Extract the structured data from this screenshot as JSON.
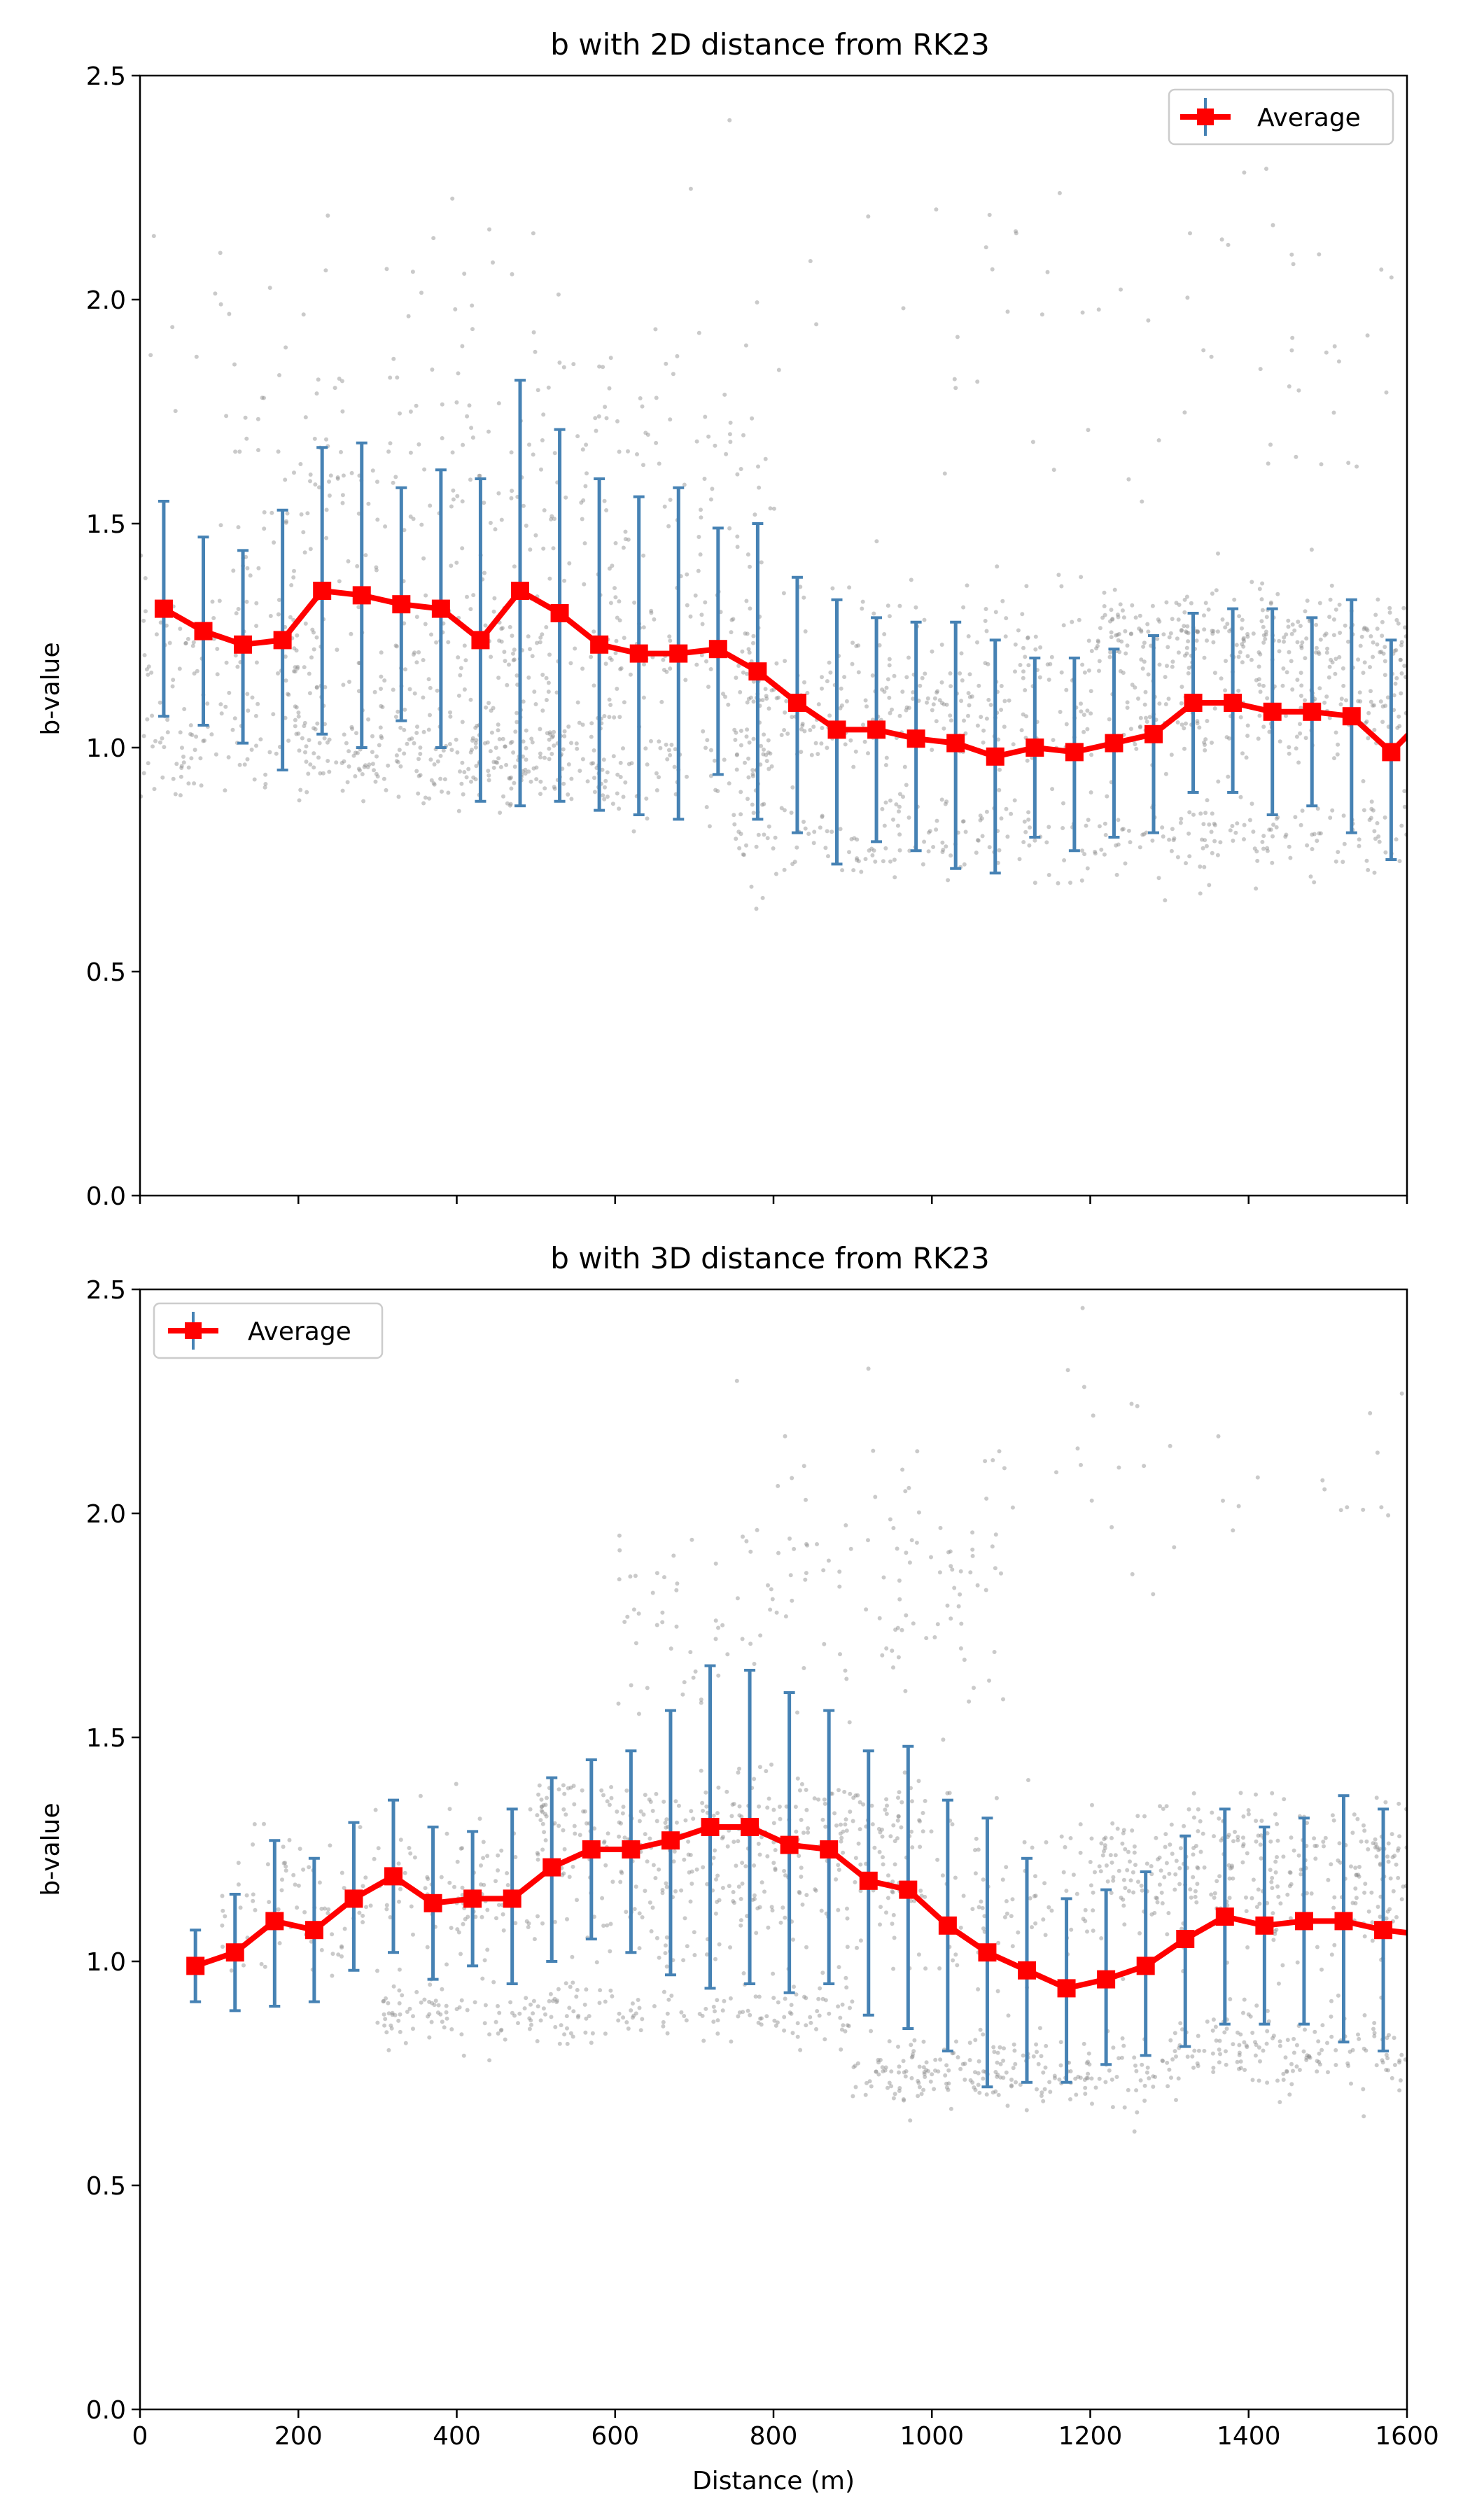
{
  "chart_data": [
    {
      "type": "line",
      "title": "b with 2D distance from RK23",
      "xlabel": "",
      "ylabel": "b-value",
      "xlim": [
        0,
        1600
      ],
      "ylim": [
        0,
        2.5
      ],
      "xticks": [
        0,
        200,
        400,
        600,
        800,
        1000,
        1200,
        1400,
        1600
      ],
      "xtick_labels_visible": false,
      "yticks": [
        0.0,
        0.5,
        1.0,
        1.5,
        2.0,
        2.5
      ],
      "ytick_labels": [
        "0.0",
        "0.5",
        "1.0",
        "1.5",
        "2.0",
        "2.5"
      ],
      "grid": false,
      "legend_position": "top-right",
      "series": [
        {
          "name": "Average",
          "color": "#ff0000",
          "errorbar_color": "#4682b4",
          "marker": "square",
          "x": [
            30,
            80,
            130,
            180,
            230,
            280,
            330,
            380,
            430,
            480,
            530,
            580,
            630,
            680,
            730,
            780,
            830,
            880,
            930,
            980,
            1030,
            1080,
            1130,
            1180,
            1230,
            1280,
            1330,
            1380,
            1430,
            1480,
            1530,
            1580,
            1630
          ],
          "y": [
            1.31,
            1.26,
            1.23,
            1.24,
            1.35,
            1.34,
            1.32,
            1.31,
            1.24,
            1.35,
            1.3,
            1.23,
            1.21,
            1.21,
            1.22,
            1.17,
            1.1,
            1.04,
            1.04,
            1.02,
            1.01,
            0.98,
            1.0,
            0.99,
            1.01,
            1.03,
            1.1,
            1.1,
            1.08,
            1.08,
            1.07,
            0.99,
            1.08
          ],
          "yerr_low": [
            1.07,
            1.05,
            1.01,
            0.95,
            1.03,
            1.0,
            1.06,
            1.0,
            0.88,
            0.87,
            0.88,
            0.86,
            0.85,
            0.84,
            0.94,
            0.84,
            0.81,
            0.74,
            0.79,
            0.77,
            0.73,
            0.72,
            0.8,
            0.77,
            0.8,
            0.81,
            0.9,
            0.9,
            0.85,
            0.87,
            0.81,
            0.75,
            0.86
          ],
          "yerr_high": [
            1.55,
            1.47,
            1.44,
            1.53,
            1.67,
            1.68,
            1.58,
            1.62,
            1.6,
            1.82,
            1.71,
            1.6,
            1.56,
            1.58,
            1.49,
            1.5,
            1.38,
            1.33,
            1.29,
            1.28,
            1.28,
            1.24,
            1.2,
            1.2,
            1.22,
            1.25,
            1.3,
            1.31,
            1.31,
            1.29,
            1.33,
            1.24,
            1.3
          ]
        }
      ],
      "scatter_color": "#8a8a8a",
      "scatter_bands": [
        {
          "x0": 0,
          "x1": 1600,
          "center": 1.2,
          "spread": 0.14,
          "count": 600
        },
        {
          "x0": 0,
          "x1": 600,
          "center": 1.0,
          "spread": 0.1,
          "count": 250
        },
        {
          "x0": 200,
          "x1": 800,
          "center": 0.95,
          "spread": 0.08,
          "count": 180
        },
        {
          "x0": 100,
          "x1": 800,
          "center": 1.55,
          "spread": 0.22,
          "count": 220
        },
        {
          "x0": 750,
          "x1": 1600,
          "center": 0.8,
          "spread": 0.08,
          "count": 300
        },
        {
          "x0": 750,
          "x1": 1600,
          "center": 1.05,
          "spread": 0.09,
          "count": 280
        },
        {
          "x0": 1200,
          "x1": 1600,
          "center": 1.25,
          "spread": 0.08,
          "count": 160
        },
        {
          "x0": 0,
          "x1": 1600,
          "center": 1.85,
          "spread": 0.35,
          "count": 140
        }
      ]
    },
    {
      "type": "line",
      "title": "b with 3D distance from RK23",
      "xlabel": "Distance (m)",
      "ylabel": "b-value",
      "xlim": [
        0,
        1600
      ],
      "ylim": [
        0,
        2.5
      ],
      "xticks": [
        0,
        200,
        400,
        600,
        800,
        1000,
        1200,
        1400,
        1600
      ],
      "xtick_labels_visible": true,
      "xtick_labels": [
        "0",
        "200",
        "400",
        "600",
        "800",
        "1000",
        "1200",
        "1400",
        "1600"
      ],
      "yticks": [
        0.0,
        0.5,
        1.0,
        1.5,
        2.0,
        2.5
      ],
      "ytick_labels": [
        "0.0",
        "0.5",
        "1.0",
        "1.5",
        "2.0",
        "2.5"
      ],
      "grid": false,
      "legend_position": "top-left",
      "series": [
        {
          "name": "Average",
          "color": "#ff0000",
          "errorbar_color": "#4682b4",
          "marker": "square",
          "x": [
            70,
            120,
            170,
            220,
            270,
            320,
            370,
            420,
            470,
            520,
            570,
            620,
            670,
            720,
            770,
            820,
            870,
            920,
            970,
            1020,
            1070,
            1120,
            1170,
            1220,
            1270,
            1320,
            1370,
            1420,
            1470,
            1520,
            1570,
            1620
          ],
          "y": [
            0.99,
            1.02,
            1.09,
            1.07,
            1.14,
            1.19,
            1.13,
            1.14,
            1.14,
            1.21,
            1.25,
            1.25,
            1.27,
            1.3,
            1.3,
            1.26,
            1.25,
            1.18,
            1.16,
            1.08,
            1.02,
            0.98,
            0.94,
            0.96,
            0.99,
            1.05,
            1.1,
            1.08,
            1.09,
            1.09,
            1.07,
            1.06
          ],
          "yerr_low": [
            0.91,
            0.89,
            0.9,
            0.91,
            0.98,
            1.02,
            0.96,
            0.99,
            0.95,
            1.0,
            1.05,
            1.02,
            0.97,
            0.94,
            0.95,
            0.93,
            0.95,
            0.88,
            0.85,
            0.8,
            0.72,
            0.73,
            0.73,
            0.77,
            0.79,
            0.81,
            0.86,
            0.86,
            0.86,
            0.82,
            0.8,
            0.85
          ],
          "yerr_high": [
            1.07,
            1.15,
            1.27,
            1.23,
            1.31,
            1.36,
            1.3,
            1.29,
            1.34,
            1.41,
            1.45,
            1.47,
            1.56,
            1.66,
            1.65,
            1.6,
            1.56,
            1.47,
            1.48,
            1.36,
            1.32,
            1.23,
            1.14,
            1.16,
            1.2,
            1.28,
            1.34,
            1.3,
            1.32,
            1.37,
            1.34,
            1.35
          ]
        }
      ],
      "scatter_color": "#8a8a8a",
      "scatter_bands": [
        {
          "x0": 100,
          "x1": 1600,
          "center": 1.15,
          "spread": 0.15,
          "count": 600
        },
        {
          "x0": 300,
          "x1": 900,
          "center": 0.88,
          "spread": 0.06,
          "count": 220
        },
        {
          "x0": 500,
          "x1": 1000,
          "center": 1.32,
          "spread": 0.08,
          "count": 220
        },
        {
          "x0": 900,
          "x1": 1300,
          "center": 0.75,
          "spread": 0.07,
          "count": 220
        },
        {
          "x0": 1300,
          "x1": 1600,
          "center": 0.8,
          "spread": 0.08,
          "count": 160
        },
        {
          "x0": 1200,
          "x1": 1600,
          "center": 1.25,
          "spread": 0.1,
          "count": 200
        },
        {
          "x0": 600,
          "x1": 1100,
          "center": 1.8,
          "spread": 0.25,
          "count": 140
        },
        {
          "x0": 800,
          "x1": 1600,
          "center": 2.05,
          "spread": 0.3,
          "count": 50
        }
      ]
    }
  ]
}
